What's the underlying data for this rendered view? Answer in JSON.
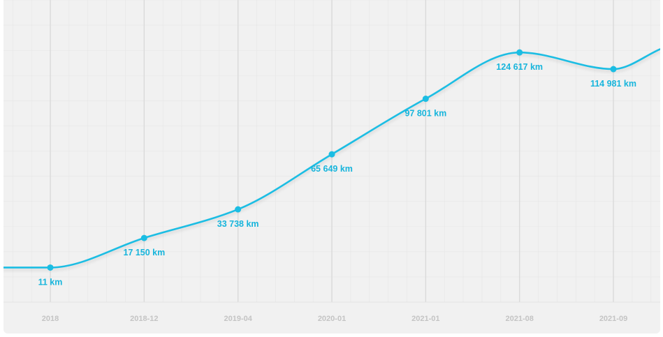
{
  "chart_data": {
    "type": "line",
    "categories": [
      "2018",
      "2018-12",
      "2019-04",
      "2020-01",
      "2021-01",
      "2021-08",
      "2021-09"
    ],
    "values": [
      11,
      17150,
      33738,
      65649,
      97801,
      124617,
      114981
    ],
    "data_labels": [
      "11 km",
      "17 150 km",
      "33 738 km",
      "65 649 km",
      "97 801 km",
      "124 617 km",
      "114 981 km"
    ],
    "unit": "km",
    "ylim": [
      -20000,
      155000
    ],
    "grid": true,
    "legend": "none",
    "colors": {
      "line": "#1bbde3",
      "label": "#17b5dc",
      "tick": "#c4c4c4",
      "major_grid": "#dadada",
      "minor_grid": "#e6e6e6",
      "background": "#f1f1f1"
    }
  }
}
